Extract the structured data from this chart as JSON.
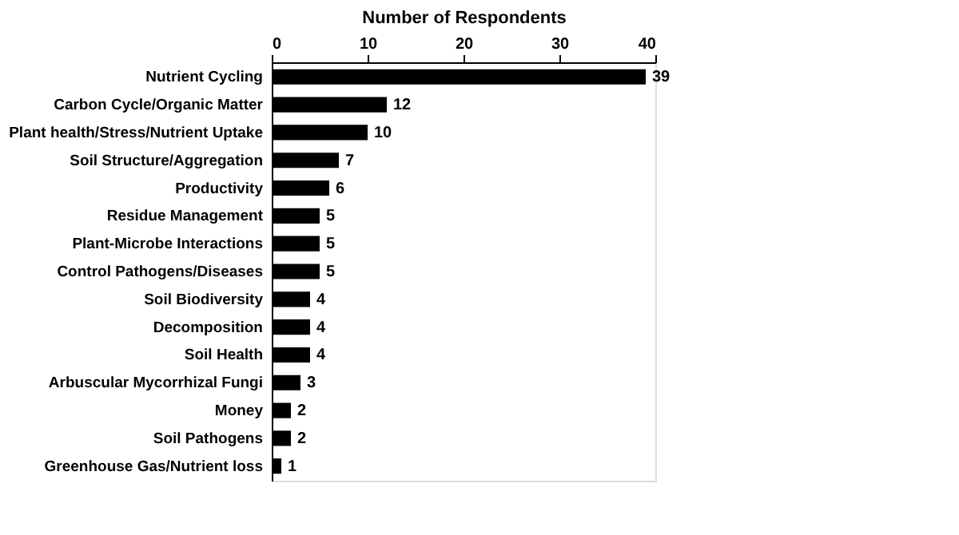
{
  "chart_data": {
    "type": "bar",
    "orientation": "horizontal",
    "xlabel": "Number of Respondents",
    "categories": [
      "Nutrient Cycling",
      "Carbon Cycle/Organic Matter",
      "Plant health/Stress/Nutrient Uptake",
      "Soil Structure/Aggregation",
      "Productivity",
      "Residue Management",
      "Plant-Microbe Interactions",
      "Control Pathogens/Diseases",
      "Soil Biodiversity",
      "Decomposition",
      "Soil Health",
      "Arbuscular Mycorrhizal Fungi",
      "Money",
      "Soil Pathogens",
      "Greenhouse Gas/Nutrient loss"
    ],
    "values": [
      39,
      12,
      10,
      7,
      6,
      5,
      5,
      5,
      4,
      4,
      4,
      3,
      2,
      2,
      1
    ],
    "color": "#000000",
    "xlim": [
      0,
      40
    ],
    "xticks": [
      0,
      10,
      20,
      30,
      40
    ],
    "data_labels": true,
    "grid": false
  }
}
